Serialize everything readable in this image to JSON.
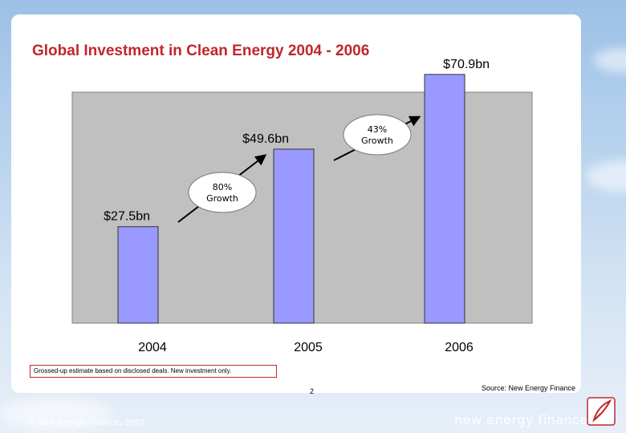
{
  "slide": {
    "title": "Global Investment in Clean Energy 2004 - 2006",
    "note": "Grossed-up estimate based on disclosed deals. New investment only.",
    "source": "Source: New Energy Finance",
    "page_number": "2",
    "copyright": "© New Energy Finance, 2007",
    "brand": "new energy finance"
  },
  "colors": {
    "title": "#c0262c",
    "bar_fill": "#9999ff",
    "plot_background": "#c0c0c0"
  },
  "chart_data": {
    "type": "bar",
    "title": "Global Investment in Clean Energy 2004 - 2006",
    "categories": [
      "2004",
      "2005",
      "2006"
    ],
    "values": [
      27.5,
      49.6,
      70.9
    ],
    "data_labels": [
      "$27.5bn",
      "$49.6bn",
      "$70.9bn"
    ],
    "ylim": [
      0,
      80
    ],
    "grid": false,
    "legend": "none",
    "annotations": [
      {
        "line1": "80%",
        "line2": "Growth",
        "from": "2004",
        "to": "2005"
      },
      {
        "line1": "43%",
        "line2": "Growth",
        "from": "2005",
        "to": "2006"
      }
    ]
  }
}
